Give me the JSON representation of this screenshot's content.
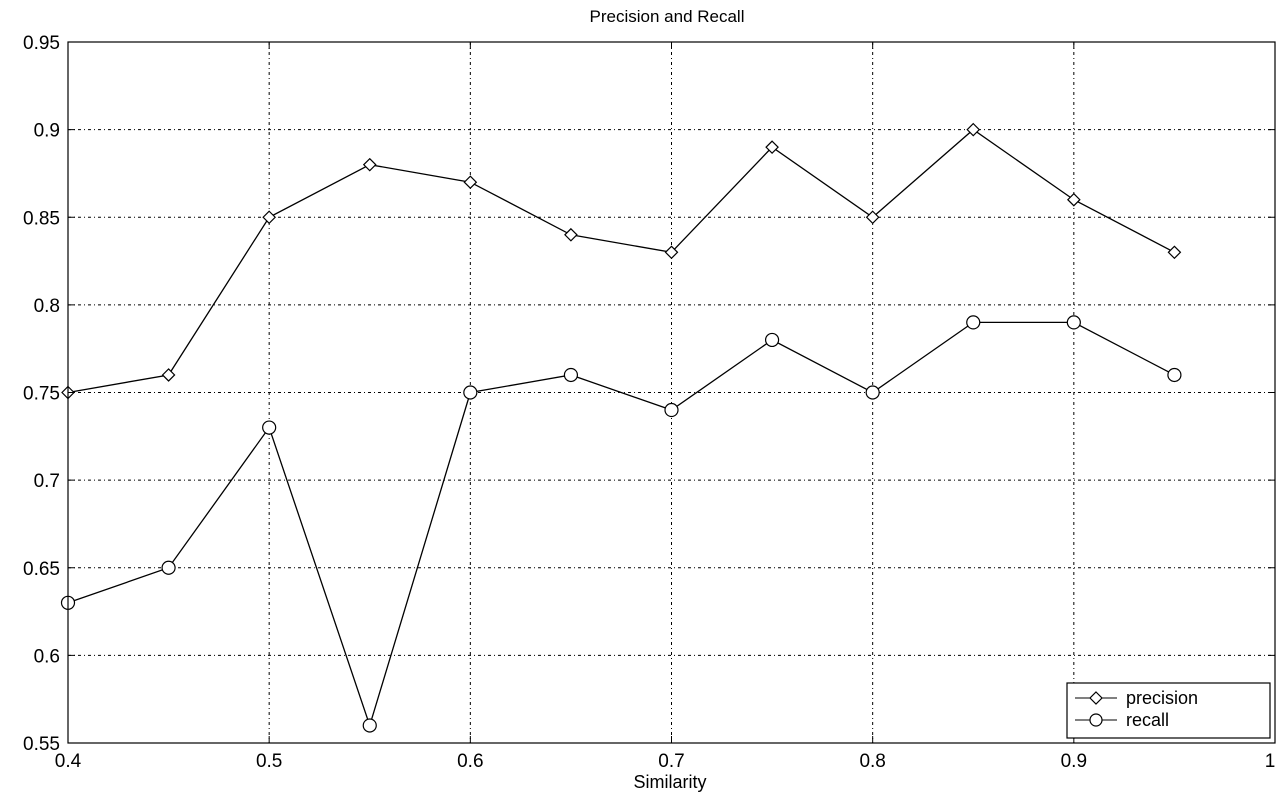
{
  "chart_data": {
    "type": "line",
    "title": "Precision and Recall",
    "xlabel": "Similarity",
    "ylabel": "",
    "xlim": [
      0.4,
      1.0
    ],
    "ylim": [
      0.55,
      0.95
    ],
    "xticks": [
      "0.4",
      "0.5",
      "0.6",
      "0.7",
      "0.8",
      "0.9",
      "1"
    ],
    "yticks": [
      "0.55",
      "0.6",
      "0.65",
      "0.7",
      "0.75",
      "0.8",
      "0.85",
      "0.9",
      "0.95"
    ],
    "grid": true,
    "legend_position": "bottom-right",
    "x": [
      0.4,
      0.45,
      0.5,
      0.55,
      0.6,
      0.65,
      0.7,
      0.75,
      0.8,
      0.85,
      0.9,
      0.95
    ],
    "series": [
      {
        "name": "precision",
        "marker": "diamond",
        "color": "#000000",
        "values": [
          0.75,
          0.76,
          0.85,
          0.88,
          0.87,
          0.84,
          0.83,
          0.89,
          0.85,
          0.9,
          0.86,
          0.83
        ]
      },
      {
        "name": "recall",
        "marker": "circle",
        "color": "#000000",
        "values": [
          0.63,
          0.65,
          0.73,
          0.56,
          0.75,
          0.76,
          0.74,
          0.78,
          0.75,
          0.79,
          0.79,
          0.76
        ]
      }
    ]
  }
}
